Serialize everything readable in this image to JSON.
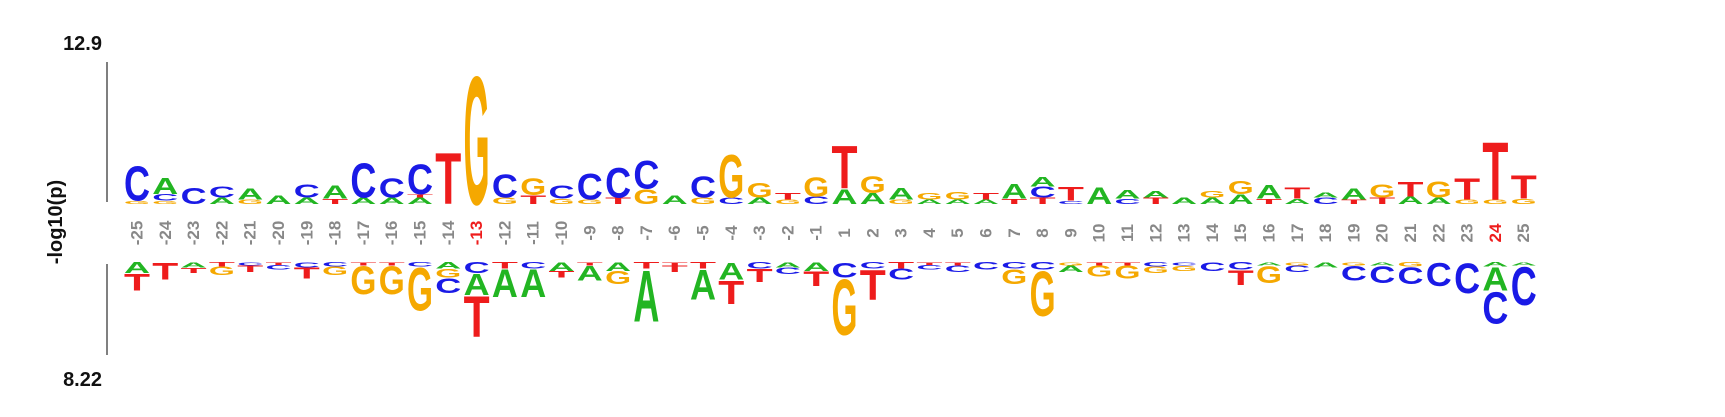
{
  "chart_data": {
    "type": "sequence-logo",
    "ylabel": "-log10(p)",
    "top_max_label": "12.9",
    "bottom_max_label": "8.22",
    "positions": [
      "-25",
      "-24",
      "-23",
      "-22",
      "-21",
      "-20",
      "-19",
      "-18",
      "-17",
      "-16",
      "-15",
      "-14",
      "-13",
      "-12",
      "-11",
      "-10",
      "-9",
      "-8",
      "-7",
      "-6",
      "-5",
      "-4",
      "-3",
      "-2",
      "-1",
      "1",
      "2",
      "3",
      "4",
      "5",
      "6",
      "7",
      "8",
      "9",
      "10",
      "11",
      "12",
      "13",
      "14",
      "15",
      "16",
      "17",
      "18",
      "19",
      "20",
      "21",
      "22",
      "23",
      "24",
      "25"
    ],
    "highlighted_positions": [
      "-13",
      "24"
    ],
    "colors": {
      "A": "#22b522",
      "C": "#1a1ae6",
      "G": "#f5a800",
      "T": "#ee1c1c",
      "label": "#888888",
      "highlight": "#ee1c1c",
      "axis": "#555555"
    },
    "top_letters": [
      [
        [
          "G",
          0.3
        ],
        [
          "C",
          3.2
        ]
      ],
      [
        [
          "G",
          0.3
        ],
        [
          "C",
          0.6
        ],
        [
          "A",
          1.5
        ]
      ],
      [
        [
          "C",
          1.5
        ]
      ],
      [
        [
          "A",
          0.6
        ],
        [
          "C",
          1.0
        ]
      ],
      [
        [
          "G",
          0.4
        ],
        [
          "A",
          1.0
        ]
      ],
      [
        [
          "A",
          0.8
        ]
      ],
      [
        [
          "A",
          0.6
        ],
        [
          "C",
          1.2
        ]
      ],
      [
        [
          "T",
          0.5
        ],
        [
          "A",
          1.2
        ]
      ],
      [
        [
          "A",
          0.6
        ],
        [
          "C",
          3.2
        ]
      ],
      [
        [
          "A",
          0.6
        ],
        [
          "C",
          1.8
        ]
      ],
      [
        [
          "A",
          0.6
        ],
        [
          "T",
          0.3
        ],
        [
          "C",
          2.8
        ]
      ],
      [
        [
          "T",
          4.8
        ]
      ],
      [
        [
          "G",
          12.0
        ]
      ],
      [
        [
          "G",
          0.6
        ],
        [
          "C",
          2.2
        ]
      ],
      [
        [
          "T",
          0.8
        ],
        [
          "G",
          1.6
        ]
      ],
      [
        [
          "G",
          0.5
        ],
        [
          "C",
          1.2
        ]
      ],
      [
        [
          "G",
          0.4
        ],
        [
          "C",
          2.4
        ]
      ],
      [
        [
          "T",
          0.6
        ],
        [
          "C",
          2.8
        ]
      ],
      [
        [
          "G",
          1.4
        ],
        [
          "C",
          2.6
        ]
      ],
      [
        [
          "A",
          0.8
        ]
      ],
      [
        [
          "G",
          0.6
        ],
        [
          "C",
          2.0
        ]
      ],
      [
        [
          "C",
          0.6
        ],
        [
          "G",
          4.0
        ]
      ],
      [
        [
          "A",
          0.6
        ],
        [
          "G",
          1.4
        ]
      ],
      [
        [
          "G",
          0.4
        ],
        [
          "T",
          0.6
        ]
      ],
      [
        [
          "C",
          0.7
        ],
        [
          "G",
          1.8
        ]
      ],
      [
        [
          "A",
          1.4
        ],
        [
          "T",
          4.0
        ]
      ],
      [
        [
          "A",
          1.0
        ],
        [
          "G",
          1.6
        ]
      ],
      [
        [
          "G",
          0.4
        ],
        [
          "A",
          1.1
        ]
      ],
      [
        [
          "A",
          0.4
        ],
        [
          "G",
          0.6
        ]
      ],
      [
        [
          "A",
          0.4
        ],
        [
          "G",
          0.7
        ]
      ],
      [
        [
          "A",
          0.4
        ],
        [
          "T",
          0.6
        ]
      ],
      [
        [
          "T",
          0.5
        ],
        [
          "A",
          1.4
        ]
      ],
      [
        [
          "T",
          0.6
        ],
        [
          "C",
          1.0
        ],
        [
          "A",
          0.9
        ]
      ],
      [
        [
          "C",
          0.3
        ],
        [
          "T",
          1.3
        ]
      ],
      [
        [
          "A",
          1.6
        ]
      ],
      [
        [
          "C",
          0.5
        ],
        [
          "A",
          0.8
        ]
      ],
      [
        [
          "T",
          0.6
        ],
        [
          "A",
          0.6
        ]
      ],
      [
        [
          "A",
          0.6
        ]
      ],
      [
        [
          "A",
          0.6
        ],
        [
          "G",
          0.6
        ]
      ],
      [
        [
          "A",
          0.9
        ],
        [
          "G",
          1.2
        ]
      ],
      [
        [
          "T",
          0.5
        ],
        [
          "A",
          1.3
        ]
      ],
      [
        [
          "A",
          0.5
        ],
        [
          "T",
          1.0
        ]
      ],
      [
        [
          "C",
          0.6
        ],
        [
          "A",
          0.5
        ]
      ],
      [
        [
          "T",
          0.4
        ],
        [
          "A",
          1.0
        ]
      ],
      [
        [
          "T",
          0.6
        ],
        [
          "G",
          1.2
        ]
      ],
      [
        [
          "A",
          0.7
        ],
        [
          "T",
          1.4
        ]
      ],
      [
        [
          "A",
          0.6
        ],
        [
          "G",
          1.5
        ]
      ],
      [
        [
          "G",
          0.4
        ],
        [
          "T",
          2.0
        ]
      ],
      [
        [
          "G",
          0.4
        ],
        [
          "T",
          5.4
        ]
      ],
      [
        [
          "G",
          0.5
        ],
        [
          "T",
          2.2
        ]
      ]
    ],
    "bottom_letters": [
      [
        [
          "A",
          1.0
        ],
        [
          "T",
          1.6
        ]
      ],
      [
        [
          "T",
          1.6
        ]
      ],
      [
        [
          "A",
          0.5
        ],
        [
          "T",
          0.5
        ]
      ],
      [
        [
          "T",
          0.4
        ],
        [
          "G",
          0.8
        ]
      ],
      [
        [
          "C",
          0.3
        ],
        [
          "T",
          0.6
        ]
      ],
      [
        [
          "T",
          0.3
        ],
        [
          "C",
          0.4
        ]
      ],
      [
        [
          "C",
          0.5
        ],
        [
          "T",
          1.0
        ]
      ],
      [
        [
          "C",
          0.4
        ],
        [
          "G",
          0.8
        ]
      ],
      [
        [
          "T",
          0.3
        ],
        [
          "G",
          2.6
        ]
      ],
      [
        [
          "T",
          0.3
        ],
        [
          "G",
          2.6
        ]
      ],
      [
        [
          "C",
          0.4
        ],
        [
          "G",
          4.0
        ]
      ],
      [
        [
          "A",
          0.6
        ],
        [
          "G",
          0.8
        ],
        [
          "C",
          1.4
        ]
      ],
      [
        [
          "C",
          1.0
        ],
        [
          "A",
          2.0
        ],
        [
          "T",
          3.8
        ]
      ],
      [
        [
          "T",
          0.6
        ],
        [
          "A",
          2.6
        ]
      ],
      [
        [
          "C",
          0.6
        ],
        [
          "A",
          2.6
        ]
      ],
      [
        [
          "A",
          0.8
        ],
        [
          "T",
          0.6
        ]
      ],
      [
        [
          "T",
          0.3
        ],
        [
          "A",
          1.4
        ]
      ],
      [
        [
          "A",
          0.8
        ],
        [
          "G",
          1.2
        ]
      ],
      [
        [
          "T",
          0.6
        ],
        [
          "A",
          4.8
        ]
      ],
      [
        [
          "T",
          0.3
        ],
        [
          "T",
          0.6
        ]
      ],
      [
        [
          "T",
          0.6
        ],
        [
          "A",
          2.8
        ]
      ],
      [
        [
          "A",
          1.6
        ],
        [
          "T",
          2.2
        ]
      ],
      [
        [
          "C",
          0.6
        ],
        [
          "T",
          1.2
        ]
      ],
      [
        [
          "A",
          0.5
        ],
        [
          "C",
          0.6
        ]
      ],
      [
        [
          "A",
          0.8
        ],
        [
          "T",
          1.4
        ]
      ],
      [
        [
          "C",
          1.4
        ],
        [
          "G",
          5.2
        ]
      ],
      [
        [
          "C",
          0.6
        ],
        [
          "T",
          2.8
        ]
      ],
      [
        [
          "T",
          0.6
        ],
        [
          "C",
          1.0
        ]
      ],
      [
        [
          "T",
          0.3
        ],
        [
          "C",
          0.4
        ]
      ],
      [
        [
          "T",
          0.3
        ],
        [
          "C",
          0.6
        ]
      ],
      [
        [
          "C",
          0.7
        ]
      ],
      [
        [
          "C",
          0.6
        ],
        [
          "G",
          1.4
        ]
      ],
      [
        [
          "C",
          0.7
        ],
        [
          "G",
          4.2
        ]
      ],
      [
        [
          "G",
          0.3
        ],
        [
          "A",
          0.6
        ]
      ],
      [
        [
          "T",
          0.3
        ],
        [
          "G",
          1.0
        ]
      ],
      [
        [
          "T",
          0.3
        ],
        [
          "G",
          1.2
        ]
      ],
      [
        [
          "C",
          0.4
        ],
        [
          "G",
          0.6
        ]
      ],
      [
        [
          "C",
          0.3
        ],
        [
          "G",
          0.5
        ]
      ],
      [
        [
          "C",
          0.8
        ]
      ],
      [
        [
          "C",
          0.7
        ],
        [
          "T",
          1.4
        ]
      ],
      [
        [
          "A",
          0.3
        ],
        [
          "G",
          1.6
        ]
      ],
      [
        [
          "G",
          0.3
        ],
        [
          "C",
          0.6
        ]
      ],
      [
        [
          "A",
          0.5
        ]
      ],
      [
        [
          "G",
          0.3
        ],
        [
          "C",
          1.4
        ]
      ],
      [
        [
          "A",
          0.3
        ],
        [
          "C",
          1.6
        ]
      ],
      [
        [
          "G",
          0.4
        ],
        [
          "C",
          1.6
        ]
      ],
      [
        [
          "C",
          2.2
        ]
      ],
      [
        [
          "C",
          2.8
        ]
      ],
      [
        [
          "A",
          0.4
        ],
        [
          "A",
          2.2
        ],
        [
          "C",
          3.0
        ]
      ],
      [
        [
          "A",
          0.3
        ],
        [
          "C",
          3.6
        ]
      ]
    ]
  }
}
